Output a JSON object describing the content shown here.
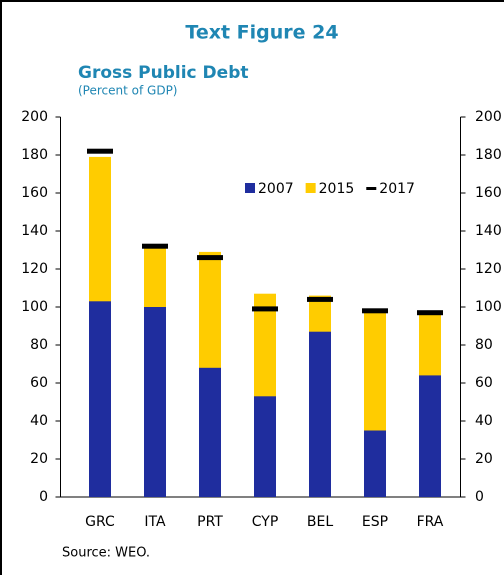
{
  "chart_data": {
    "type": "bar",
    "title": "Text Figure 24",
    "subtitle": "Gross Public Debt",
    "y_label": "(Percent of GDP)",
    "source": "Source: WEO.",
    "categories": [
      "GRC",
      "ITA",
      "PRT",
      "CYP",
      "BEL",
      "ESP",
      "FRA"
    ],
    "series": [
      {
        "name": "2007",
        "color": "#1f2d9e",
        "kind": "bar",
        "values": [
          103,
          100,
          68,
          53,
          87,
          35,
          64
        ]
      },
      {
        "name": "2015",
        "color": "#ffcc00",
        "kind": "bar",
        "values": [
          179,
          131,
          129,
          107,
          106,
          97,
          96
        ]
      },
      {
        "name": "2017",
        "color": "#000000",
        "kind": "marker",
        "values": [
          182,
          132,
          126,
          99,
          104,
          98,
          97
        ]
      }
    ],
    "ylim": [
      0,
      200
    ],
    "yticks": [
      0,
      20,
      40,
      60,
      80,
      100,
      120,
      140,
      160,
      180,
      200
    ],
    "y2lim": [
      0,
      200
    ],
    "y2ticks": [
      0,
      20,
      40,
      60,
      80,
      100,
      120,
      140,
      160,
      180,
      200
    ],
    "grid": false,
    "legend": "top-right"
  }
}
